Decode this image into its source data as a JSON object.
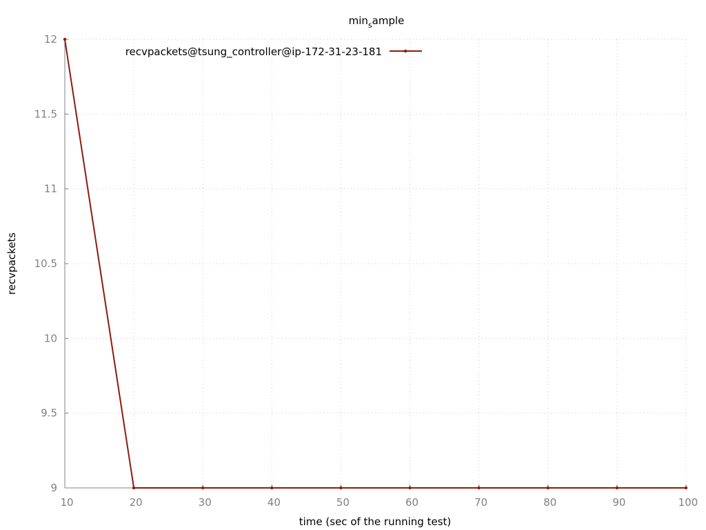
{
  "chart_data": {
    "type": "line",
    "title_main": "min",
    "title_sub": "s",
    "title_rest": "ample",
    "xlabel": "time (sec of the running test)",
    "ylabel": "recvpackets",
    "xlim": [
      10,
      100
    ],
    "ylim": [
      9,
      12
    ],
    "x_ticks": [
      "10",
      "20",
      "30",
      "40",
      "50",
      "60",
      "70",
      "80",
      "90",
      "100"
    ],
    "y_ticks": [
      "9",
      "9.5",
      "10",
      "10.5",
      "11",
      "11.5",
      "12"
    ],
    "grid": true,
    "legend_position": "top-left",
    "series": [
      {
        "name": "recvpackets@tsung_controller@ip-172-31-23-181",
        "color": "#8b1a0e",
        "x": [
          10,
          20,
          30,
          40,
          50,
          60,
          70,
          80,
          90,
          100
        ],
        "values": [
          12,
          9,
          9,
          9,
          9,
          9,
          9,
          9,
          9,
          9
        ]
      }
    ]
  }
}
